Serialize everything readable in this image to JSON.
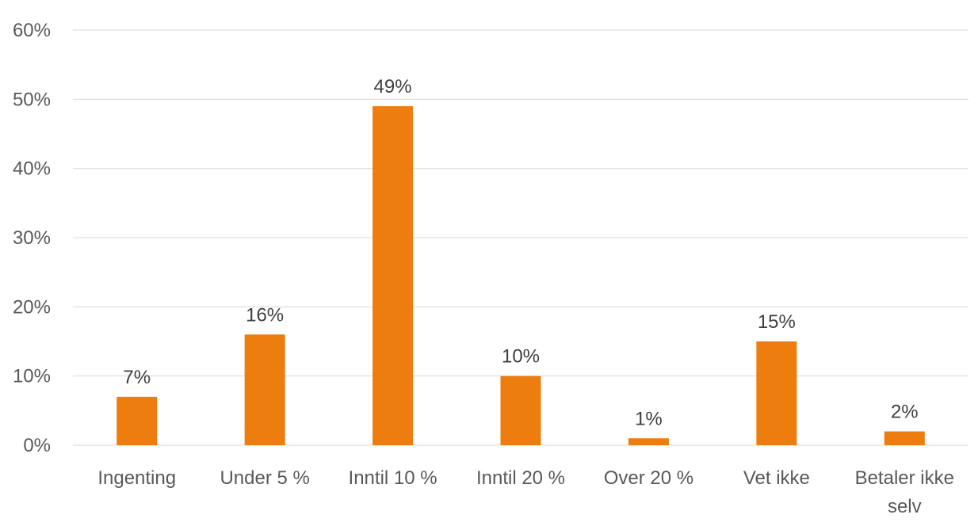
{
  "chart_data": {
    "type": "bar",
    "title": "",
    "xlabel": "",
    "ylabel": "",
    "categories": [
      [
        "Ingenting"
      ],
      [
        "Under 5 %"
      ],
      [
        "Inntil 10 %"
      ],
      [
        "Inntil 20 %"
      ],
      [
        "Over 20 %"
      ],
      [
        "Vet ikke"
      ],
      [
        "Betaler ikke",
        "selv"
      ]
    ],
    "values": [
      7,
      16,
      49,
      10,
      1,
      15,
      2
    ],
    "data_labels": [
      "7%",
      "16%",
      "49%",
      "10%",
      "1%",
      "15%",
      "2%"
    ],
    "ylim": [
      0,
      60
    ],
    "yticks": [
      0,
      10,
      20,
      30,
      40,
      50,
      60
    ],
    "ytick_labels": [
      "0%",
      "10%",
      "20%",
      "30%",
      "40%",
      "50%",
      "60%"
    ],
    "grid": true,
    "legend": "none",
    "bar_color": "#ED7D0E"
  }
}
